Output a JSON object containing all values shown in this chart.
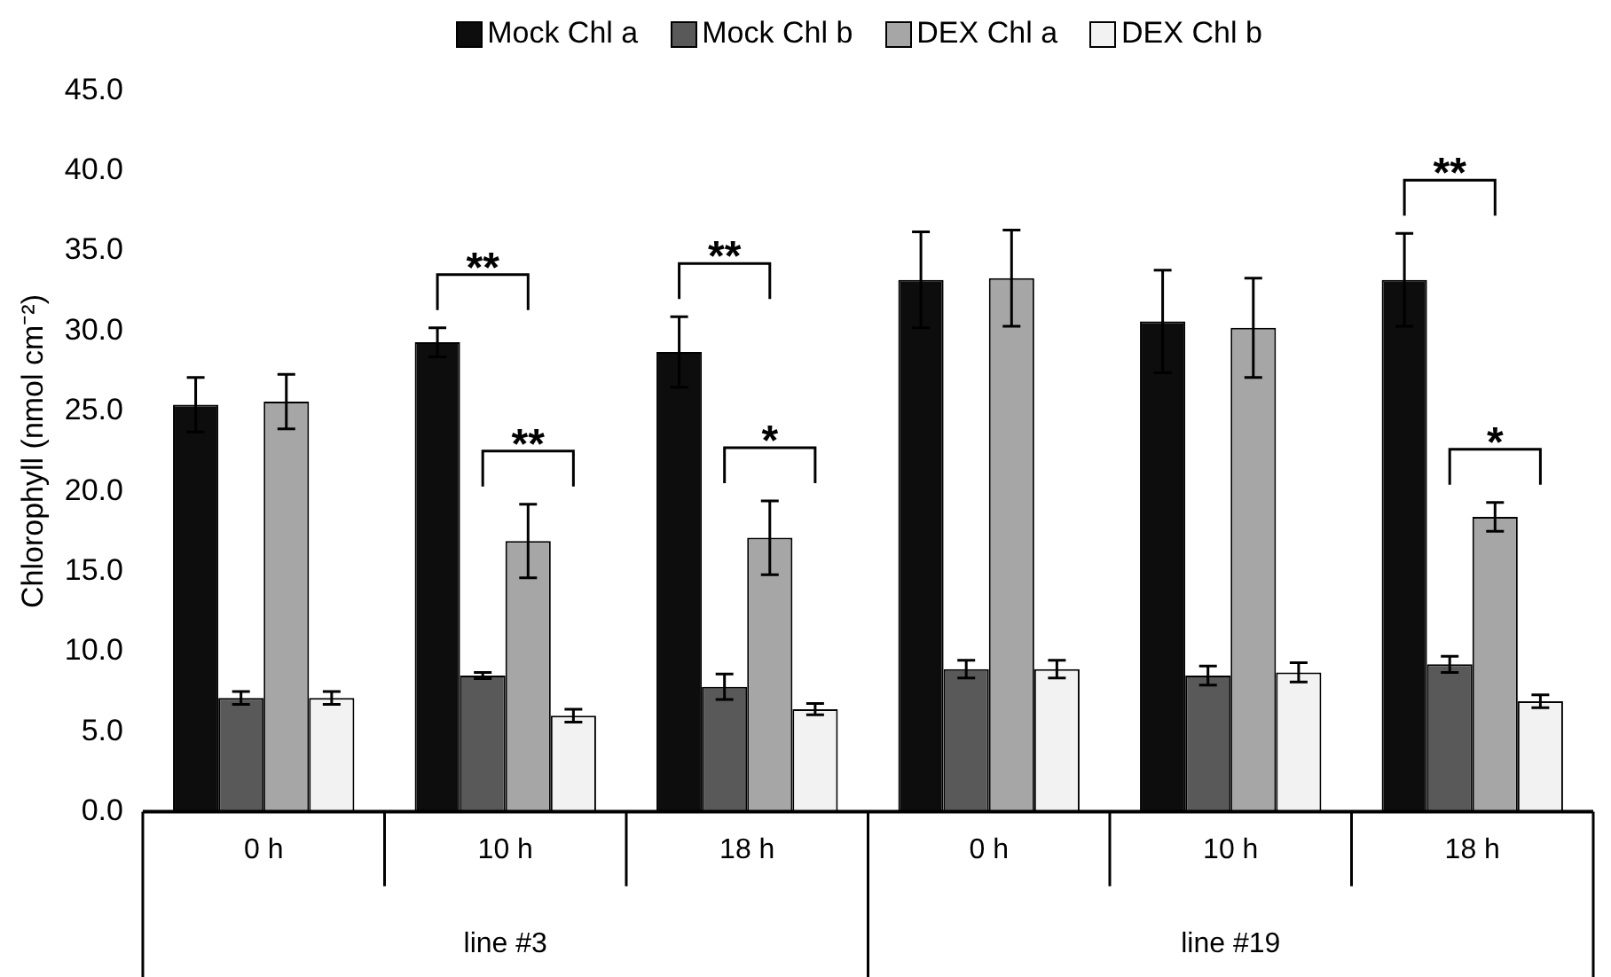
{
  "chart_data": {
    "type": "bar",
    "ylabel": "Chlorophyll (nmol cm⁻²)",
    "categories": [
      "0 h",
      "10 h",
      "18 h",
      "0 h",
      "10 h",
      "18 h"
    ],
    "series": [
      {
        "name": "Mock Chl a",
        "color": "#0d0d0d",
        "values": [
          25.4,
          29.3,
          28.7,
          33.2,
          30.6,
          33.2
        ],
        "errors": [
          1.7,
          0.9,
          2.2,
          3.0,
          3.2,
          2.9
        ]
      },
      {
        "name": "Mock Chl b",
        "color": "#595959",
        "values": [
          7.1,
          8.5,
          7.8,
          8.9,
          8.5,
          9.2
        ],
        "errors": [
          0.4,
          0.2,
          0.8,
          0.55,
          0.6,
          0.5
        ]
      },
      {
        "name": "DEX Chl a",
        "color": "#a6a6a6",
        "values": [
          25.6,
          16.9,
          17.1,
          33.3,
          30.2,
          18.4
        ],
        "errors": [
          1.7,
          2.3,
          2.3,
          3.0,
          3.1,
          0.9
        ]
      },
      {
        "name": "DEX Chl b",
        "color": "#f2f2f2",
        "values": [
          7.1,
          6.0,
          6.4,
          8.9,
          8.7,
          6.9
        ],
        "errors": [
          0.4,
          0.4,
          0.35,
          0.55,
          0.6,
          0.4
        ]
      }
    ],
    "ylim": [
      0,
      45
    ],
    "yticks": [
      {
        "value": 0,
        "label": "0.0"
      },
      {
        "value": 5,
        "label": "5.0"
      },
      {
        "value": 10,
        "label": "10.0"
      },
      {
        "value": 15,
        "label": "15.0"
      },
      {
        "value": 20,
        "label": "20.0"
      },
      {
        "value": 25,
        "label": "25.0"
      },
      {
        "value": 30,
        "label": "30.0"
      },
      {
        "value": 35,
        "label": "35.0"
      },
      {
        "value": 40,
        "label": "40.0"
      },
      {
        "value": 45,
        "label": "45.0"
      }
    ],
    "grid": false,
    "legend": "top",
    "annotations": [
      "**",
      "**",
      "**",
      "*",
      "**",
      "*",
      "line #3",
      "line #19"
    ]
  }
}
